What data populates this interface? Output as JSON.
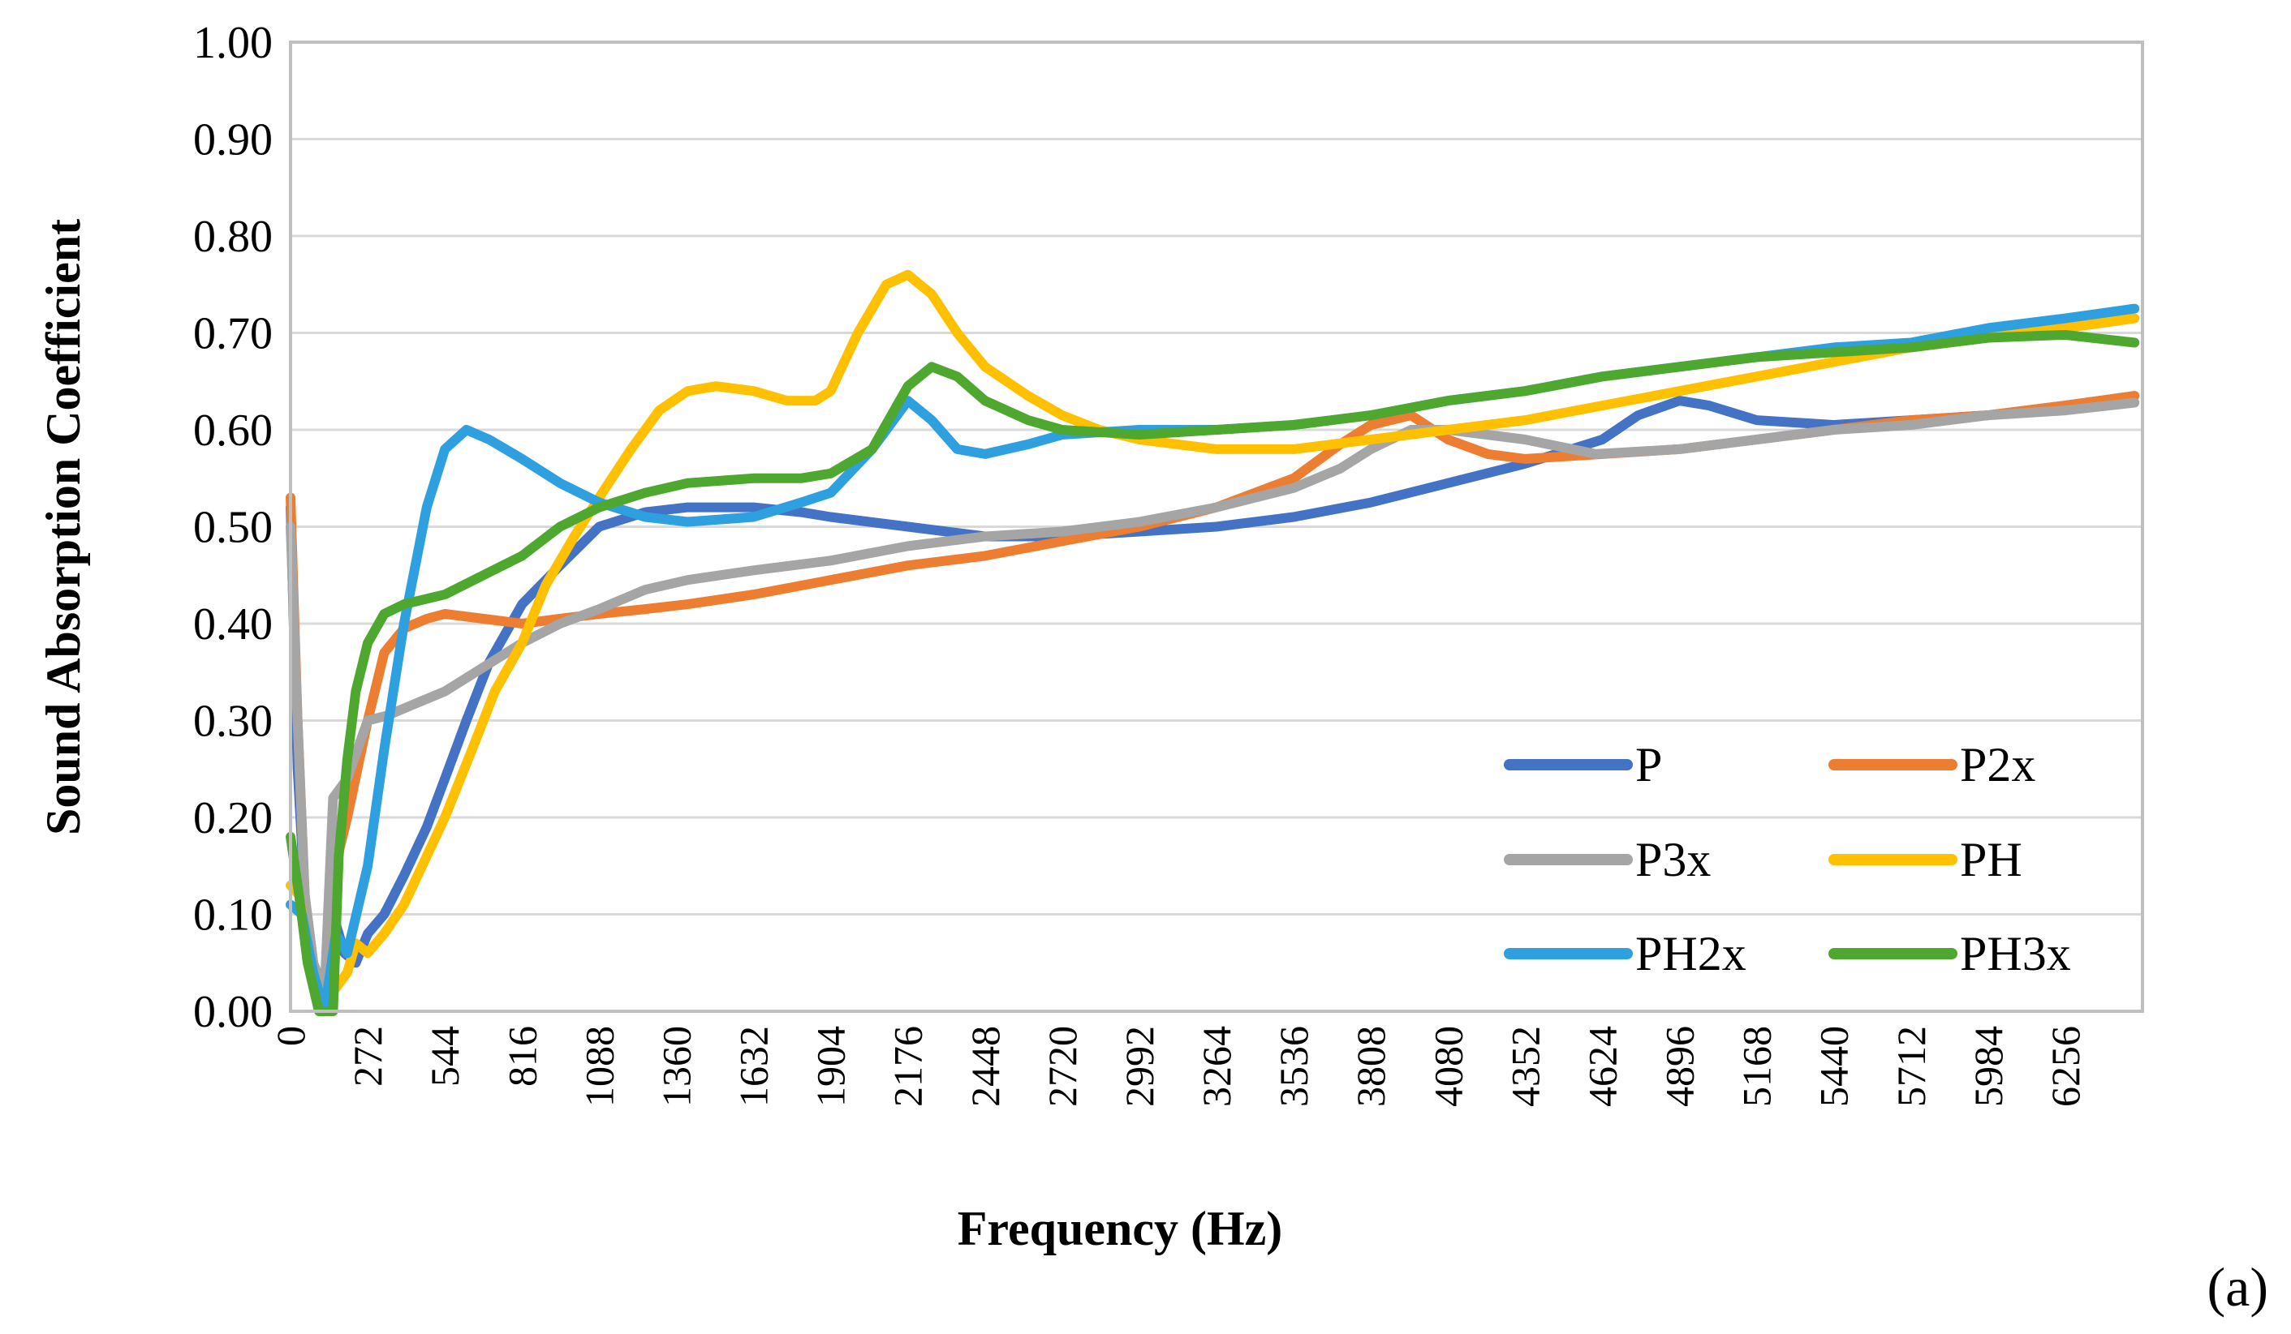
{
  "chart_data": {
    "type": "line",
    "title": "",
    "xlabel": "Frequency (Hz)",
    "ylabel": "Sound Absorption Coefficient",
    "panel_label": "(a)",
    "xlim": [
      0,
      6528
    ],
    "ylim": [
      0,
      1
    ],
    "x_ticks": [
      "0",
      "272",
      "544",
      "816",
      "1088",
      "1360",
      "1632",
      "1904",
      "2176",
      "2448",
      "2720",
      "2992",
      "3264",
      "3536",
      "3808",
      "4080",
      "4352",
      "4624",
      "4896",
      "5168",
      "5440",
      "5712",
      "5984",
      "6256"
    ],
    "y_ticks": [
      "0.00",
      "0.10",
      "0.20",
      "0.30",
      "0.40",
      "0.50",
      "0.60",
      "0.70",
      "0.80",
      "0.90",
      "1.00"
    ],
    "grid": "horizontal",
    "legend_position": "bottom-right",
    "series": [
      {
        "name": "P",
        "color": "#4472C4",
        "points": [
          [
            0,
            0.52
          ],
          [
            25,
            0.25
          ],
          [
            50,
            0.12
          ],
          [
            80,
            0.05
          ],
          [
            120,
            0.0
          ],
          [
            150,
            0.1
          ],
          [
            190,
            0.06
          ],
          [
            230,
            0.05
          ],
          [
            272,
            0.08
          ],
          [
            330,
            0.1
          ],
          [
            400,
            0.14
          ],
          [
            480,
            0.19
          ],
          [
            544,
            0.24
          ],
          [
            620,
            0.3
          ],
          [
            700,
            0.36
          ],
          [
            816,
            0.42
          ],
          [
            950,
            0.46
          ],
          [
            1088,
            0.5
          ],
          [
            1250,
            0.515
          ],
          [
            1400,
            0.52
          ],
          [
            1632,
            0.52
          ],
          [
            1800,
            0.515
          ],
          [
            1904,
            0.51
          ],
          [
            2176,
            0.5
          ],
          [
            2448,
            0.49
          ],
          [
            2720,
            0.49
          ],
          [
            2992,
            0.495
          ],
          [
            3264,
            0.5
          ],
          [
            3536,
            0.51
          ],
          [
            3808,
            0.525
          ],
          [
            4080,
            0.545
          ],
          [
            4352,
            0.565
          ],
          [
            4624,
            0.59
          ],
          [
            4750,
            0.615
          ],
          [
            4896,
            0.63
          ],
          [
            5000,
            0.625
          ],
          [
            5168,
            0.61
          ],
          [
            5440,
            0.605
          ],
          [
            5712,
            0.61
          ],
          [
            5984,
            0.615
          ],
          [
            6256,
            0.625
          ],
          [
            6500,
            0.635
          ]
        ]
      },
      {
        "name": "P2x",
        "color": "#ED7D31",
        "points": [
          [
            0,
            0.53
          ],
          [
            25,
            0.3
          ],
          [
            50,
            0.12
          ],
          [
            80,
            0.04
          ],
          [
            120,
            0.02
          ],
          [
            150,
            0.14
          ],
          [
            200,
            0.2
          ],
          [
            272,
            0.3
          ],
          [
            330,
            0.37
          ],
          [
            400,
            0.395
          ],
          [
            480,
            0.405
          ],
          [
            544,
            0.41
          ],
          [
            680,
            0.405
          ],
          [
            816,
            0.4
          ],
          [
            950,
            0.405
          ],
          [
            1088,
            0.41
          ],
          [
            1250,
            0.415
          ],
          [
            1400,
            0.42
          ],
          [
            1632,
            0.43
          ],
          [
            1904,
            0.445
          ],
          [
            2176,
            0.46
          ],
          [
            2448,
            0.47
          ],
          [
            2720,
            0.485
          ],
          [
            2992,
            0.5
          ],
          [
            3264,
            0.52
          ],
          [
            3536,
            0.55
          ],
          [
            3700,
            0.585
          ],
          [
            3808,
            0.605
          ],
          [
            3950,
            0.615
          ],
          [
            4080,
            0.59
          ],
          [
            4220,
            0.575
          ],
          [
            4352,
            0.57
          ],
          [
            4624,
            0.575
          ],
          [
            4896,
            0.58
          ],
          [
            5168,
            0.59
          ],
          [
            5440,
            0.6
          ],
          [
            5712,
            0.61
          ],
          [
            5984,
            0.615
          ],
          [
            6256,
            0.625
          ],
          [
            6500,
            0.635
          ]
        ]
      },
      {
        "name": "P3x",
        "color": "#A5A5A5",
        "points": [
          [
            0,
            0.5
          ],
          [
            25,
            0.3
          ],
          [
            50,
            0.12
          ],
          [
            80,
            0.05
          ],
          [
            120,
            0.02
          ],
          [
            150,
            0.22
          ],
          [
            200,
            0.24
          ],
          [
            272,
            0.3
          ],
          [
            340,
            0.305
          ],
          [
            420,
            0.315
          ],
          [
            544,
            0.33
          ],
          [
            680,
            0.355
          ],
          [
            816,
            0.38
          ],
          [
            950,
            0.4
          ],
          [
            1088,
            0.415
          ],
          [
            1250,
            0.435
          ],
          [
            1400,
            0.445
          ],
          [
            1632,
            0.455
          ],
          [
            1904,
            0.465
          ],
          [
            2176,
            0.48
          ],
          [
            2448,
            0.49
          ],
          [
            2720,
            0.495
          ],
          [
            2992,
            0.505
          ],
          [
            3264,
            0.52
          ],
          [
            3536,
            0.54
          ],
          [
            3700,
            0.56
          ],
          [
            3808,
            0.58
          ],
          [
            3950,
            0.6
          ],
          [
            4080,
            0.6
          ],
          [
            4352,
            0.59
          ],
          [
            4600,
            0.575
          ],
          [
            4896,
            0.58
          ],
          [
            5168,
            0.59
          ],
          [
            5440,
            0.6
          ],
          [
            5712,
            0.605
          ],
          [
            5984,
            0.615
          ],
          [
            6256,
            0.62
          ],
          [
            6500,
            0.628
          ]
        ]
      },
      {
        "name": "PH",
        "color": "#FFC000",
        "points": [
          [
            0,
            0.13
          ],
          [
            30,
            0.12
          ],
          [
            60,
            0.06
          ],
          [
            100,
            0.02
          ],
          [
            150,
            0.02
          ],
          [
            200,
            0.04
          ],
          [
            230,
            0.07
          ],
          [
            272,
            0.06
          ],
          [
            330,
            0.08
          ],
          [
            400,
            0.11
          ],
          [
            480,
            0.16
          ],
          [
            544,
            0.2
          ],
          [
            640,
            0.27
          ],
          [
            720,
            0.33
          ],
          [
            816,
            0.38
          ],
          [
            900,
            0.44
          ],
          [
            1000,
            0.49
          ],
          [
            1088,
            0.53
          ],
          [
            1200,
            0.58
          ],
          [
            1300,
            0.62
          ],
          [
            1400,
            0.64
          ],
          [
            1500,
            0.645
          ],
          [
            1632,
            0.64
          ],
          [
            1750,
            0.63
          ],
          [
            1850,
            0.63
          ],
          [
            1904,
            0.64
          ],
          [
            2000,
            0.7
          ],
          [
            2100,
            0.75
          ],
          [
            2176,
            0.76
          ],
          [
            2260,
            0.74
          ],
          [
            2350,
            0.7
          ],
          [
            2448,
            0.665
          ],
          [
            2600,
            0.635
          ],
          [
            2720,
            0.615
          ],
          [
            2850,
            0.6
          ],
          [
            2992,
            0.59
          ],
          [
            3264,
            0.58
          ],
          [
            3536,
            0.58
          ],
          [
            3808,
            0.59
          ],
          [
            4080,
            0.6
          ],
          [
            4352,
            0.61
          ],
          [
            4624,
            0.625
          ],
          [
            4896,
            0.64
          ],
          [
            5168,
            0.655
          ],
          [
            5440,
            0.67
          ],
          [
            5712,
            0.685
          ],
          [
            5984,
            0.695
          ],
          [
            6256,
            0.705
          ],
          [
            6500,
            0.715
          ]
        ]
      },
      {
        "name": "PH2x",
        "color": "#2E9FDF",
        "points": [
          [
            0,
            0.11
          ],
          [
            40,
            0.1
          ],
          [
            80,
            0.04
          ],
          [
            120,
            0.0
          ],
          [
            160,
            0.08
          ],
          [
            200,
            0.06
          ],
          [
            272,
            0.15
          ],
          [
            330,
            0.27
          ],
          [
            400,
            0.4
          ],
          [
            480,
            0.52
          ],
          [
            544,
            0.58
          ],
          [
            620,
            0.6
          ],
          [
            700,
            0.59
          ],
          [
            816,
            0.57
          ],
          [
            950,
            0.545
          ],
          [
            1088,
            0.525
          ],
          [
            1250,
            0.51
          ],
          [
            1400,
            0.505
          ],
          [
            1632,
            0.51
          ],
          [
            1800,
            0.525
          ],
          [
            1904,
            0.535
          ],
          [
            2050,
            0.58
          ],
          [
            2176,
            0.63
          ],
          [
            2260,
            0.61
          ],
          [
            2350,
            0.58
          ],
          [
            2448,
            0.575
          ],
          [
            2600,
            0.585
          ],
          [
            2720,
            0.595
          ],
          [
            2992,
            0.6
          ],
          [
            3264,
            0.6
          ],
          [
            3536,
            0.605
          ],
          [
            3808,
            0.615
          ],
          [
            4080,
            0.63
          ],
          [
            4352,
            0.64
          ],
          [
            4624,
            0.655
          ],
          [
            4896,
            0.665
          ],
          [
            5168,
            0.675
          ],
          [
            5440,
            0.685
          ],
          [
            5712,
            0.69
          ],
          [
            5984,
            0.705
          ],
          [
            6256,
            0.715
          ],
          [
            6500,
            0.725
          ]
        ]
      },
      {
        "name": "PH3x",
        "color": "#4EA72E",
        "points": [
          [
            0,
            0.18
          ],
          [
            30,
            0.12
          ],
          [
            60,
            0.05
          ],
          [
            100,
            0.0
          ],
          [
            150,
            0.0
          ],
          [
            170,
            0.16
          ],
          [
            200,
            0.26
          ],
          [
            230,
            0.33
          ],
          [
            272,
            0.38
          ],
          [
            330,
            0.41
          ],
          [
            400,
            0.42
          ],
          [
            544,
            0.43
          ],
          [
            680,
            0.45
          ],
          [
            816,
            0.47
          ],
          [
            950,
            0.5
          ],
          [
            1088,
            0.52
          ],
          [
            1250,
            0.535
          ],
          [
            1400,
            0.545
          ],
          [
            1632,
            0.55
          ],
          [
            1800,
            0.55
          ],
          [
            1904,
            0.555
          ],
          [
            2050,
            0.58
          ],
          [
            2176,
            0.645
          ],
          [
            2260,
            0.665
          ],
          [
            2350,
            0.655
          ],
          [
            2448,
            0.63
          ],
          [
            2600,
            0.61
          ],
          [
            2720,
            0.6
          ],
          [
            2992,
            0.595
          ],
          [
            3264,
            0.6
          ],
          [
            3536,
            0.605
          ],
          [
            3808,
            0.615
          ],
          [
            4080,
            0.63
          ],
          [
            4352,
            0.64
          ],
          [
            4624,
            0.655
          ],
          [
            4896,
            0.665
          ],
          [
            5168,
            0.675
          ],
          [
            5440,
            0.68
          ],
          [
            5712,
            0.685
          ],
          [
            5984,
            0.695
          ],
          [
            6256,
            0.698
          ],
          [
            6500,
            0.69
          ]
        ]
      }
    ]
  }
}
